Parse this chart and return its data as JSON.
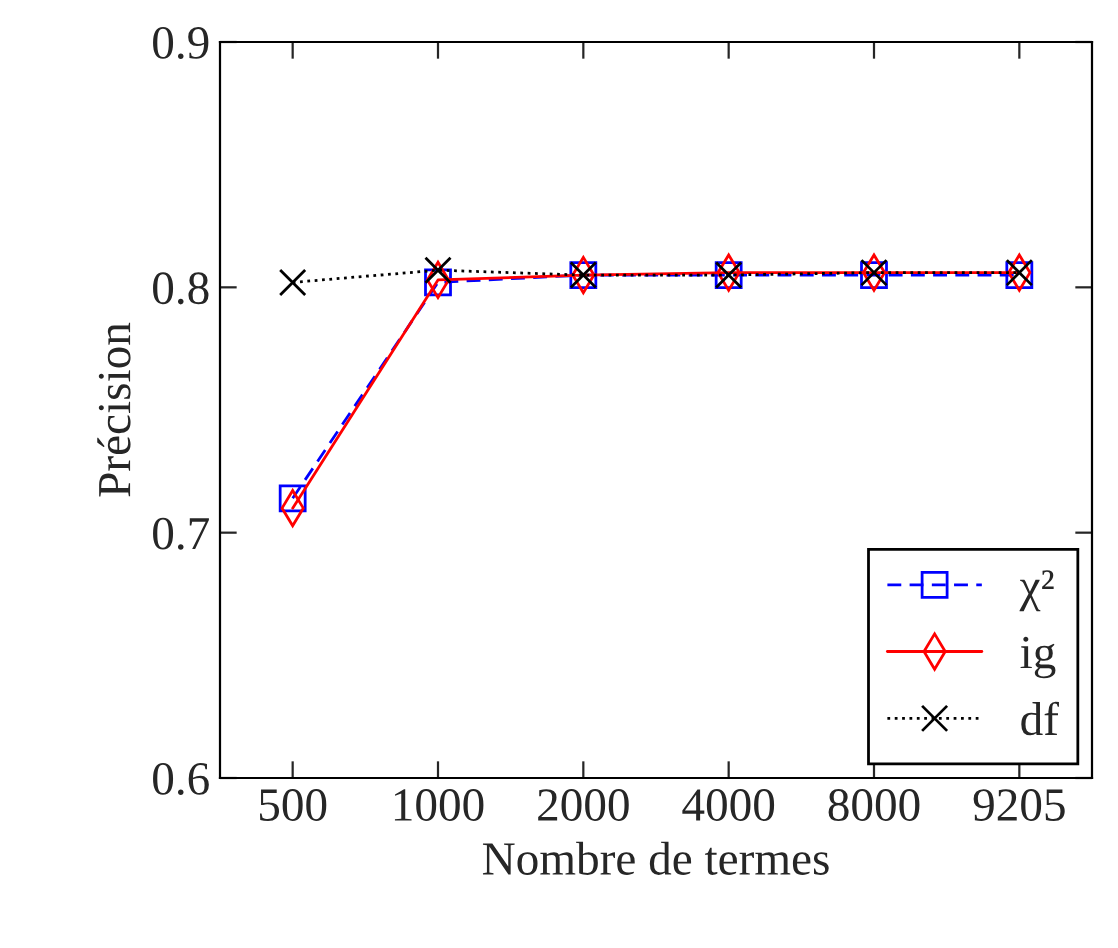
{
  "chart_data": {
    "type": "line",
    "xlabel": "Nombre de termes",
    "ylabel": "Précision",
    "categories": [
      "500",
      "1000",
      "2000",
      "4000",
      "8000",
      "9205"
    ],
    "series": [
      {
        "name": "χ²",
        "color": "#0000ff",
        "marker": "square",
        "line_style": "dashed",
        "values": [
          0.714,
          0.802,
          0.805,
          0.805,
          0.805,
          0.805
        ]
      },
      {
        "name": "ig",
        "color": "#ff0000",
        "marker": "diamond",
        "line_style": "solid",
        "values": [
          0.71,
          0.803,
          0.805,
          0.806,
          0.806,
          0.806
        ]
      },
      {
        "name": "df",
        "color": "#000000",
        "marker": "cross",
        "line_style": "dotted",
        "values": [
          0.802,
          0.807,
          0.805,
          0.805,
          0.806,
          0.806
        ]
      }
    ],
    "ylim": [
      0.6,
      0.9
    ],
    "yticks": [
      0.6,
      0.7,
      0.8,
      0.9
    ],
    "grid": false,
    "legend": "bottom right"
  }
}
